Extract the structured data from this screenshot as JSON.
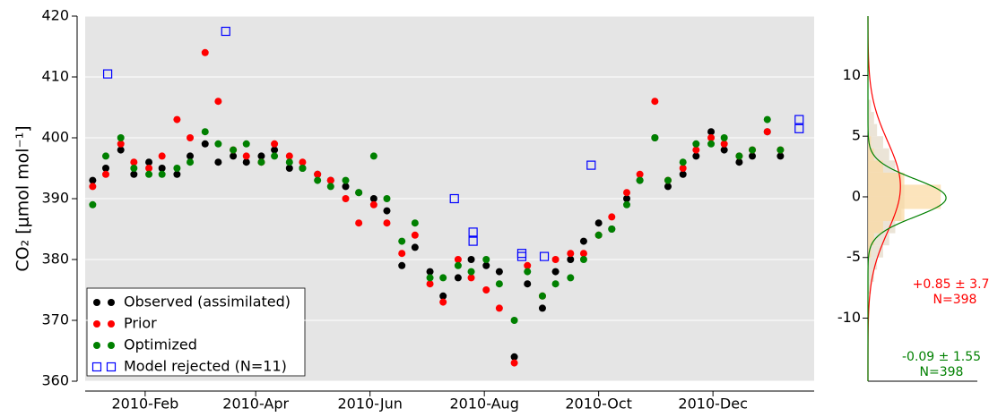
{
  "chart_data": [
    {
      "type": "scatter",
      "ylabel": "CO₂ [μmol mol⁻¹]",
      "xlim": [
        -1,
        388
      ],
      "ylim": [
        360,
        420
      ],
      "yticks": [
        360,
        370,
        380,
        390,
        400,
        410,
        420
      ],
      "xticks": [
        {
          "value": 31,
          "label": "2010-Feb"
        },
        {
          "value": 90,
          "label": "2010-Apr"
        },
        {
          "value": 151,
          "label": "2010-Jun"
        },
        {
          "value": 212,
          "label": "2010-Aug"
        },
        {
          "value": 273,
          "label": "2010-Oct"
        },
        {
          "value": 334,
          "label": "2010-Dec"
        }
      ],
      "grid": true,
      "legend": "lower left",
      "x": [
        3,
        10,
        18,
        25,
        33,
        40,
        48,
        55,
        63,
        70,
        78,
        85,
        93,
        100,
        108,
        115,
        123,
        130,
        138,
        145,
        153,
        160,
        168,
        175,
        183,
        190,
        198,
        205,
        213,
        220,
        228,
        235,
        243,
        250,
        258,
        265,
        273,
        280,
        288,
        295,
        303,
        310,
        318,
        325,
        333,
        340,
        348,
        355,
        363,
        370
      ],
      "series": [
        {
          "name": "Observed (assimilated)",
          "color": "#000000",
          "marker": "circle",
          "values": [
            393,
            395,
            398,
            394,
            396,
            395,
            394,
            397,
            399,
            396,
            397,
            396,
            397,
            398,
            395,
            395,
            394,
            393,
            392,
            391,
            390,
            388,
            379,
            382,
            378,
            374,
            377,
            380,
            379,
            378,
            364,
            376,
            372,
            378,
            380,
            383,
            386,
            385,
            390,
            393,
            400,
            392,
            394,
            397,
            401,
            398,
            396,
            397,
            401,
            397
          ]
        },
        {
          "name": "Prior",
          "color": "#ff0000",
          "marker": "circle",
          "values": [
            392,
            394,
            399,
            396,
            395,
            397,
            403,
            400,
            414,
            406,
            398,
            397,
            396,
            399,
            397,
            396,
            394,
            393,
            390,
            386,
            389,
            386,
            381,
            384,
            376,
            373,
            380,
            377,
            375,
            372,
            363,
            379,
            374,
            380,
            381,
            381,
            384,
            387,
            391,
            394,
            406,
            393,
            395,
            398,
            400,
            399,
            397,
            398,
            401,
            398
          ]
        },
        {
          "name": "Optimized",
          "color": "#008000",
          "marker": "circle",
          "values": [
            389,
            397,
            400,
            395,
            394,
            394,
            395,
            396,
            401,
            399,
            398,
            399,
            396,
            397,
            396,
            395,
            393,
            392,
            393,
            391,
            397,
            390,
            383,
            386,
            377,
            377,
            379,
            378,
            380,
            376,
            370,
            378,
            374,
            376,
            377,
            380,
            384,
            385,
            389,
            393,
            400,
            393,
            396,
            399,
            399,
            400,
            397,
            398,
            403,
            398
          ]
        },
        {
          "name": "Model rejected (N=11)",
          "color": "#0000ff",
          "marker": "square",
          "x": [
            11,
            74,
            196,
            206,
            206,
            232,
            232,
            244,
            269,
            380,
            380
          ],
          "values": [
            410.5,
            417.5,
            390,
            384.5,
            383,
            381,
            380.5,
            380.5,
            395.5,
            403,
            401.5
          ]
        }
      ]
    },
    {
      "type": "density",
      "ylim": [
        -15.2,
        14.9
      ],
      "yticks": [
        -10,
        -5,
        0,
        5,
        10
      ],
      "xlim": [
        0,
        0.39
      ],
      "bins": [
        -8,
        -7,
        -6,
        -5,
        -4,
        -3,
        -2,
        -1,
        0,
        1,
        2,
        3,
        4,
        5,
        6,
        7,
        8
      ],
      "series": [
        {
          "color": "#ff0000",
          "hist_color": "#e3d9c6",
          "mean": 0.85,
          "sd": 3.73,
          "label": "+0.85 ± 3.73",
          "count_label": "N=398",
          "hist": [
            0.01,
            0.02,
            0.03,
            0.05,
            0.07,
            0.09,
            0.11,
            0.12,
            0.12,
            0.11,
            0.09,
            0.07,
            0.05,
            0.03,
            0.02,
            0.01
          ]
        },
        {
          "color": "#008000",
          "hist_color": "#fbd9a0",
          "mean": -0.09,
          "sd": 1.55,
          "label": "-0.09 ± 1.55",
          "count_label": "N=398",
          "hist": [
            0,
            0,
            0,
            0.01,
            0.02,
            0.05,
            0.12,
            0.24,
            0.24,
            0.12,
            0.05,
            0.02,
            0.01,
            0,
            0,
            0
          ]
        }
      ]
    }
  ]
}
